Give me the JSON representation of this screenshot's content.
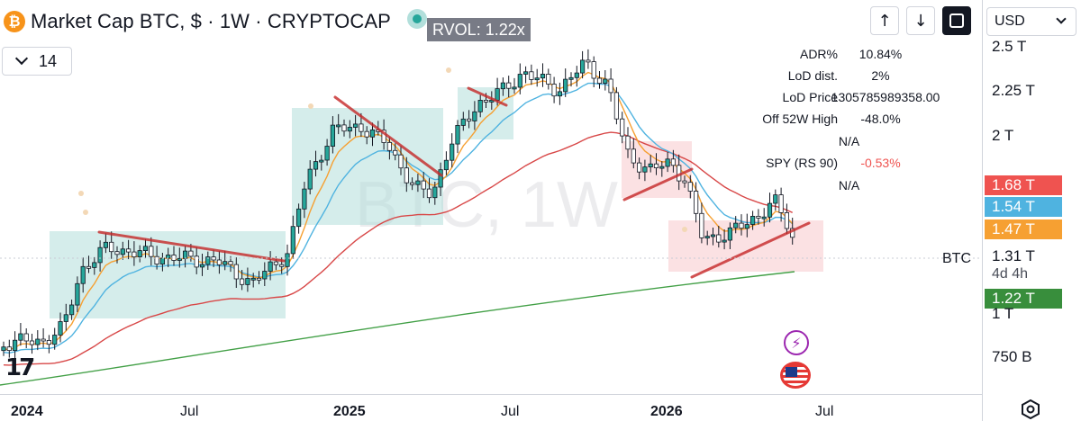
{
  "header": {
    "logo_icon": "bitcoin-icon",
    "logo_glyph": "₿",
    "title": "Market Cap BTC, $ · 1W · CRYPTOCAP",
    "rvol": "RVOL: 1.22x"
  },
  "indicator_collapse": {
    "count": "14"
  },
  "toolbar": {
    "icons": [
      "arrow-up-icon",
      "arrow-down-icon",
      "fullscreen-icon"
    ],
    "up_glyph": "↑",
    "down_glyph": "↓"
  },
  "watermark": "BTC, 1W",
  "stats": [
    {
      "label": "ADR%",
      "value": "10.84%",
      "color": "#131722"
    },
    {
      "label": "LoD dist.",
      "value": "2%",
      "color": "#131722"
    },
    {
      "label": "LoD Price",
      "value": "1305785989358.00",
      "color": "#131722"
    },
    {
      "label": "Off 52W High",
      "value": "-48.0%",
      "color": "#131722"
    },
    {
      "label": "",
      "value": "N/A",
      "color": "#131722"
    },
    {
      "label": "SPY (RS 90)",
      "value": "-0.53%",
      "color": "#ef5350"
    },
    {
      "label": "",
      "value": "N/A",
      "color": "#131722"
    }
  ],
  "price_scale": {
    "currency": "USD",
    "labels": [
      "2.5 T",
      "2.25 T",
      "2 T",
      "1.31 T",
      "4d 4h",
      "1 T",
      "750 B"
    ],
    "badges": [
      {
        "text": "1.68 T",
        "color": "#ef5350"
      },
      {
        "text": "1.54 T",
        "color": "#4fb3e0"
      },
      {
        "text": "1.47 T",
        "color": "#f6a032"
      },
      {
        "text": "1.22 T",
        "color": "#388e3c"
      }
    ]
  },
  "symbol_label": "BTC",
  "time_axis": [
    {
      "text": "2024",
      "bold": true
    },
    {
      "text": "Jul",
      "bold": false
    },
    {
      "text": "2025",
      "bold": true
    },
    {
      "text": "Jul",
      "bold": false
    },
    {
      "text": "2026",
      "bold": true
    },
    {
      "text": "Jul",
      "bold": false
    }
  ],
  "bottom_icons": [
    "tradingview-logo-icon",
    "lightning-icon",
    "us-flag-icon",
    "settings-icon"
  ],
  "tv_logo_text": "17",
  "bolt_glyph": "⚡",
  "colors": {
    "candle": "#26a69a",
    "ema_fast": "#f6a032",
    "ema_mid": "#4fb3e0",
    "ma_slow": "#d84848",
    "ma_long": "#43a047",
    "trendline": "#c62828",
    "base_box": "#b2dfdb",
    "distribution_box": "#f8c9cc"
  }
}
